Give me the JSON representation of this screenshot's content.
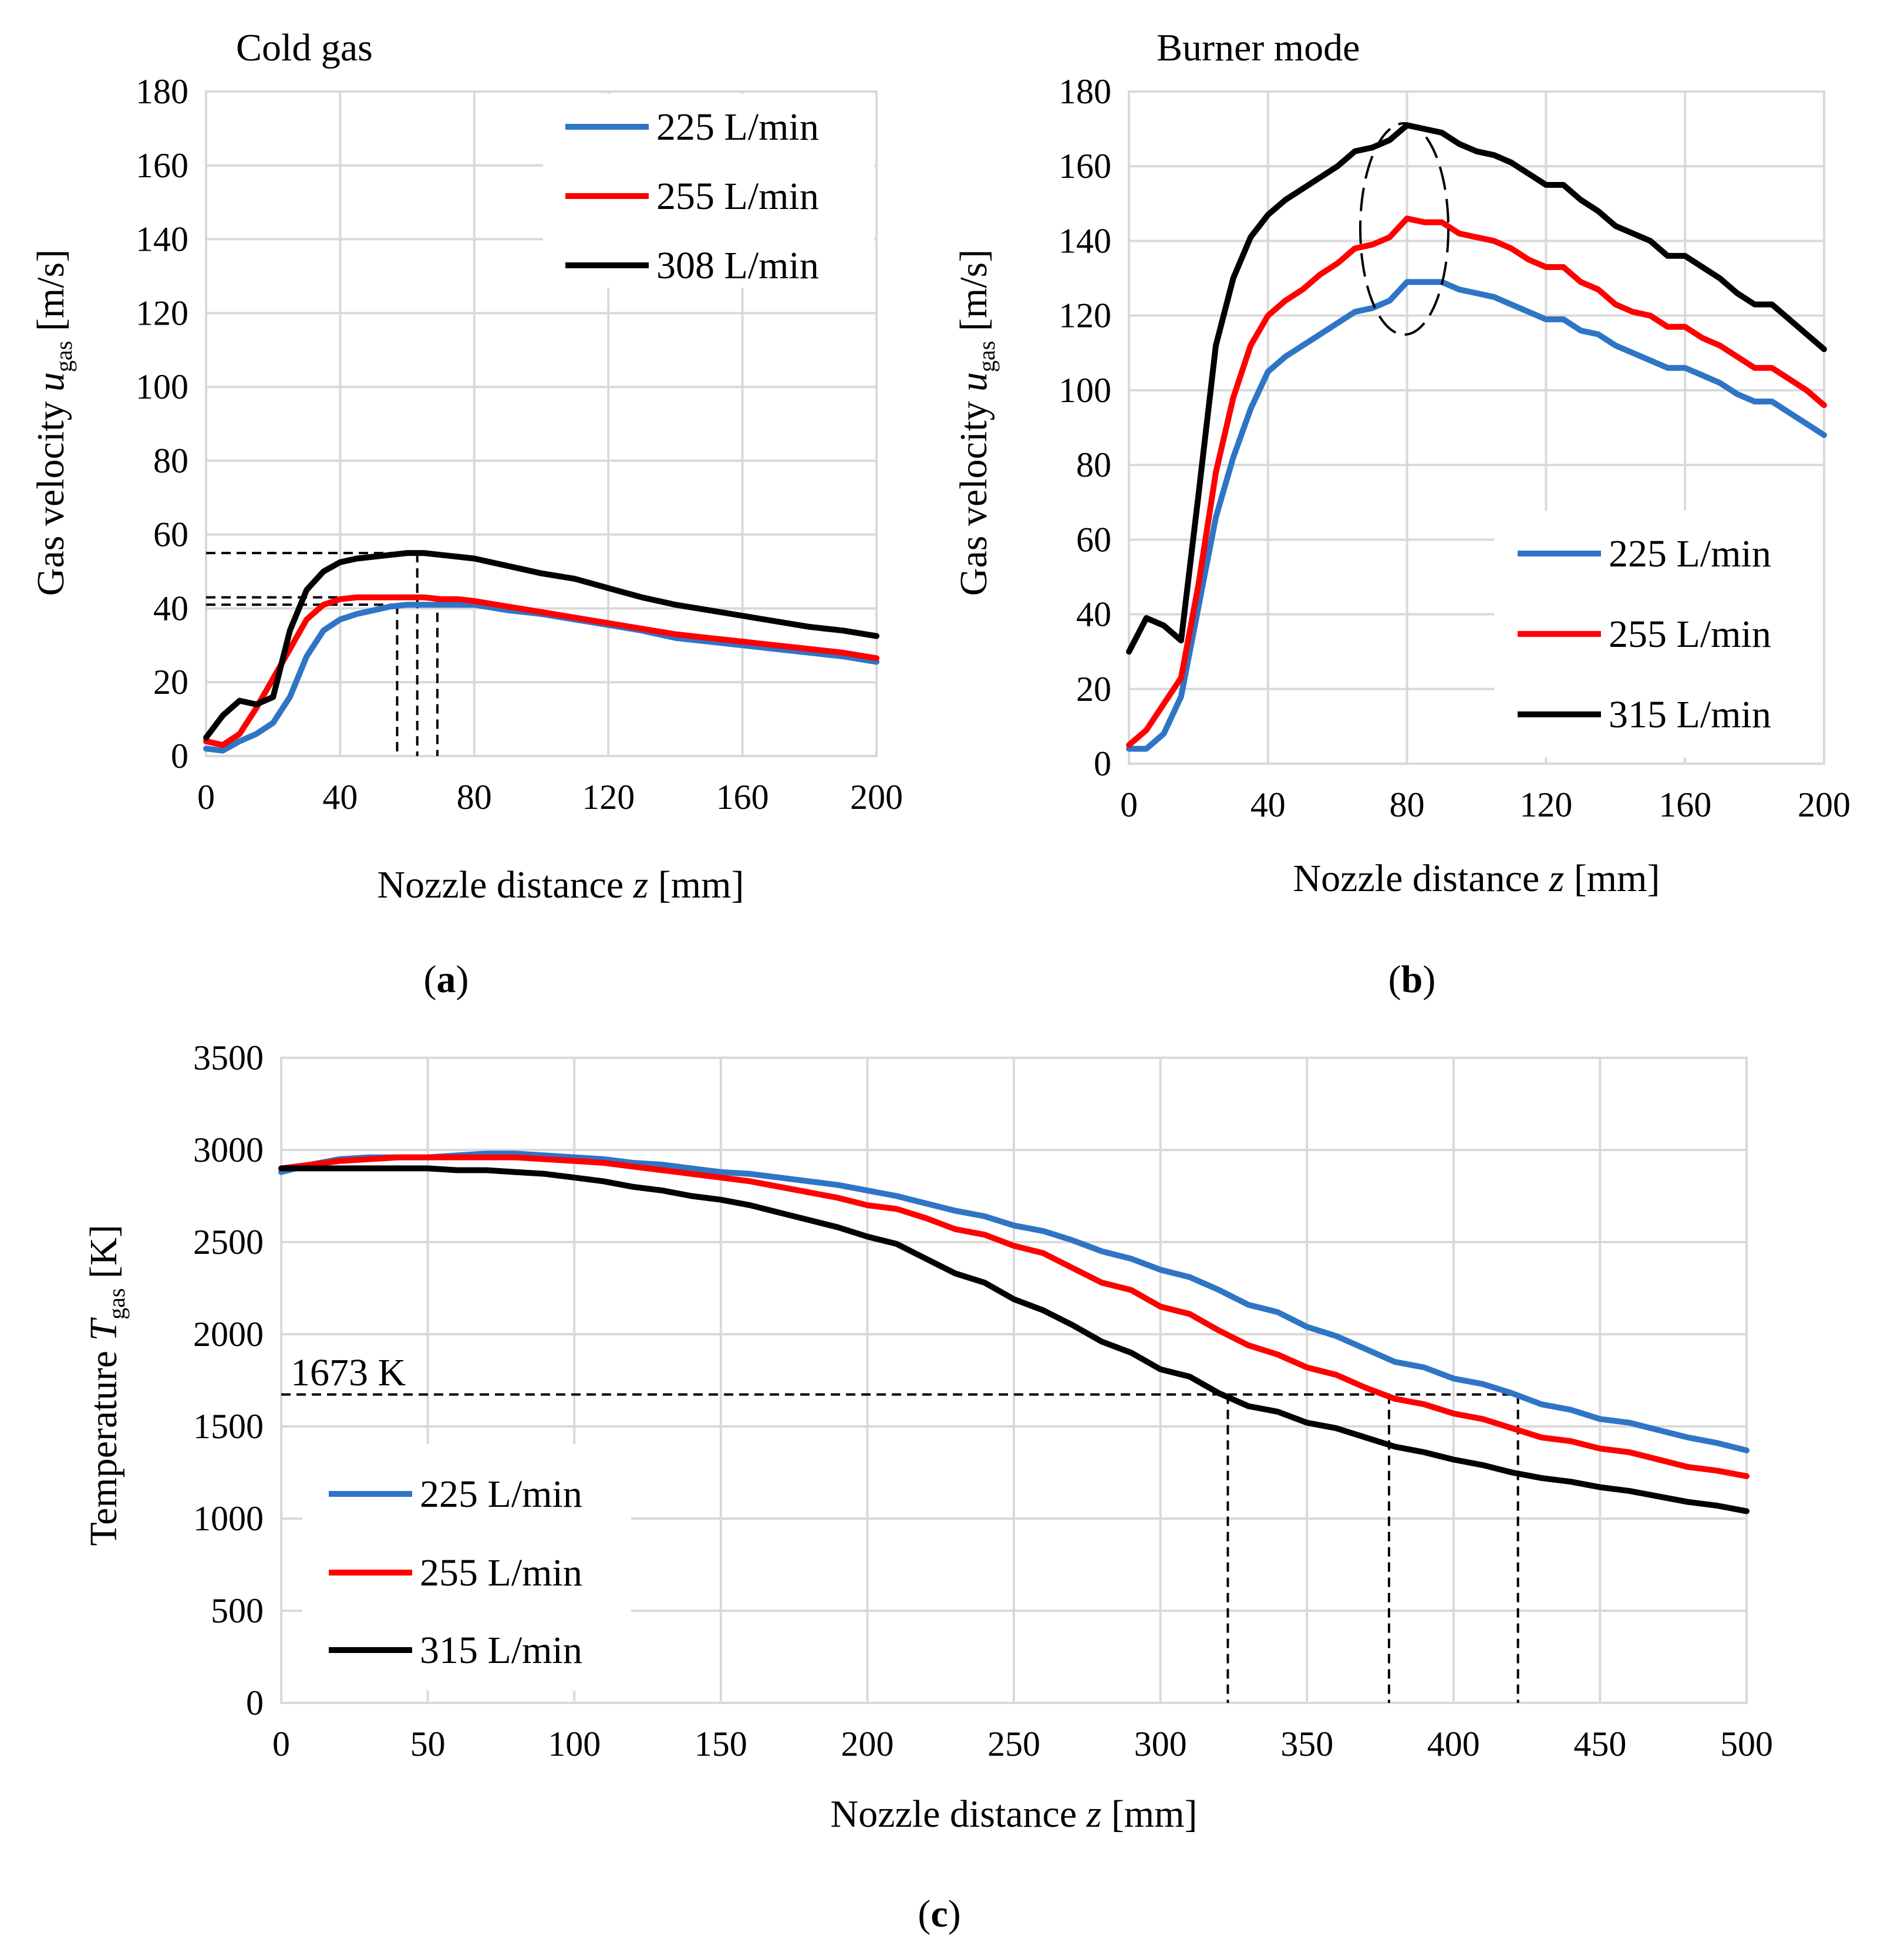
{
  "colors": {
    "blue": "#2f75c6",
    "red": "#ff0000",
    "black": "#000000",
    "grid": "#d9d9d9"
  },
  "chart_data": [
    {
      "type": "line",
      "panel": "a",
      "title": "Cold gas",
      "caption": "a",
      "ylabel": {
        "prefix": "Gas velocity ",
        "var": "u",
        "sub": "gas",
        "suffix": " [m/s]"
      },
      "xlabel": {
        "prefix": "Nozzle distance ",
        "var": "z",
        "suffix": " [mm]"
      },
      "xlim": [
        0,
        200
      ],
      "ylim": [
        0,
        180
      ],
      "xticks": [
        0,
        40,
        80,
        120,
        160,
        200
      ],
      "yticks": [
        0,
        20,
        40,
        60,
        80,
        100,
        120,
        140,
        160,
        180
      ],
      "legend_position": "top-right",
      "series": [
        {
          "name": "225 L/min",
          "color": "#2f75c6",
          "x": [
            0,
            5,
            10,
            15,
            20,
            25,
            30,
            35,
            40,
            45,
            50,
            55,
            60,
            65,
            70,
            75,
            80,
            90,
            100,
            110,
            120,
            130,
            140,
            150,
            160,
            170,
            180,
            190,
            200
          ],
          "y": [
            2,
            1.5,
            4,
            6,
            9,
            16,
            27,
            34,
            37,
            38.5,
            39.5,
            40.5,
            41,
            41,
            41,
            41,
            41,
            39.5,
            38.5,
            37,
            35.5,
            34,
            32,
            31,
            30,
            29,
            28,
            27,
            25.5
          ]
        },
        {
          "name": "255 L/min",
          "color": "#ff0000",
          "x": [
            0,
            5,
            10,
            15,
            20,
            25,
            30,
            35,
            40,
            45,
            50,
            55,
            60,
            65,
            70,
            75,
            80,
            90,
            100,
            110,
            120,
            130,
            140,
            150,
            160,
            170,
            180,
            190,
            200
          ],
          "y": [
            4,
            3,
            6,
            13,
            21,
            29,
            37,
            41,
            42.5,
            43,
            43,
            43,
            43,
            43,
            42.5,
            42.5,
            42,
            40.5,
            39,
            37.5,
            36,
            34.5,
            33,
            32,
            31,
            30,
            29,
            28,
            26.5
          ]
        },
        {
          "name": "308 L/min",
          "color": "#000000",
          "x": [
            0,
            5,
            10,
            15,
            20,
            25,
            30,
            35,
            40,
            45,
            50,
            55,
            60,
            65,
            70,
            75,
            80,
            90,
            100,
            110,
            120,
            130,
            140,
            150,
            160,
            170,
            180,
            190,
            200
          ],
          "y": [
            5,
            11,
            15,
            14,
            16,
            34,
            45,
            50,
            52.5,
            53.5,
            54,
            54.5,
            55,
            55,
            54.5,
            54,
            53.5,
            51.5,
            49.5,
            48,
            45.5,
            43,
            41,
            39.5,
            38,
            36.5,
            35,
            34,
            32.5
          ]
        }
      ],
      "reference_lines": [
        {
          "value": 41,
          "at_x": 57
        },
        {
          "value": 43,
          "at_x": 69
        },
        {
          "value": 55,
          "at_x": 63
        }
      ]
    },
    {
      "type": "line",
      "panel": "b",
      "title": "Burner mode",
      "caption": "b",
      "ylabel": {
        "prefix": "Gas velocity ",
        "var": "u",
        "sub": "gas",
        "suffix": " [m/s]"
      },
      "xlabel": {
        "prefix": "Nozzle distance ",
        "var": "z",
        "suffix": " [mm]"
      },
      "xlim": [
        0,
        200
      ],
      "ylim": [
        0,
        180
      ],
      "xticks": [
        0,
        40,
        80,
        120,
        160,
        200
      ],
      "yticks": [
        0,
        20,
        40,
        60,
        80,
        100,
        120,
        140,
        160,
        180
      ],
      "legend_position": "bottom-right",
      "series": [
        {
          "name": "225 L/min",
          "color": "#2f75c6",
          "x": [
            0,
            5,
            10,
            15,
            20,
            25,
            30,
            35,
            40,
            45,
            50,
            55,
            60,
            65,
            70,
            75,
            80,
            85,
            90,
            95,
            100,
            105,
            110,
            115,
            120,
            125,
            130,
            135,
            140,
            145,
            150,
            155,
            160,
            165,
            170,
            175,
            180,
            185,
            190,
            195,
            200
          ],
          "y": [
            4,
            4,
            8,
            18,
            42,
            66,
            82,
            95,
            105,
            109,
            112,
            115,
            118,
            121,
            122,
            124,
            129,
            129,
            129,
            127,
            126,
            125,
            123,
            121,
            119,
            119,
            116,
            115,
            112,
            110,
            108,
            106,
            106,
            104,
            102,
            99,
            97,
            97,
            94,
            91,
            88
          ]
        },
        {
          "name": "255 L/min",
          "color": "#ff0000",
          "x": [
            0,
            5,
            10,
            15,
            20,
            25,
            30,
            35,
            40,
            45,
            50,
            55,
            60,
            65,
            70,
            75,
            80,
            85,
            90,
            95,
            100,
            105,
            110,
            115,
            120,
            125,
            130,
            135,
            140,
            145,
            150,
            155,
            160,
            165,
            170,
            175,
            180,
            185,
            190,
            195,
            200
          ],
          "y": [
            5,
            9,
            16,
            23,
            48,
            78,
            98,
            112,
            120,
            124,
            127,
            131,
            134,
            138,
            139,
            141,
            146,
            145,
            145,
            142,
            141,
            140,
            138,
            135,
            133,
            133,
            129,
            127,
            123,
            121,
            120,
            117,
            117,
            114,
            112,
            109,
            106,
            106,
            103,
            100,
            96
          ]
        },
        {
          "name": "315 L/min",
          "color": "#000000",
          "x": [
            0,
            5,
            10,
            15,
            20,
            25,
            30,
            35,
            40,
            45,
            50,
            55,
            60,
            65,
            70,
            75,
            80,
            85,
            90,
            95,
            100,
            105,
            110,
            115,
            120,
            125,
            130,
            135,
            140,
            145,
            150,
            155,
            160,
            165,
            170,
            175,
            180,
            185,
            190,
            195,
            200
          ],
          "y": [
            30,
            39,
            37,
            33,
            72,
            112,
            130,
            141,
            147,
            151,
            154,
            157,
            160,
            164,
            165,
            167,
            171,
            170,
            169,
            166,
            164,
            163,
            161,
            158,
            155,
            155,
            151,
            148,
            144,
            142,
            140,
            136,
            136,
            133,
            130,
            126,
            123,
            123,
            119,
            115,
            111
          ]
        }
      ],
      "annotation": "peak ellipse around z = 80 mm"
    },
    {
      "type": "line",
      "panel": "c",
      "caption": "c",
      "ylabel": {
        "prefix": "Temperature ",
        "var": "T",
        "sub": "gas",
        "suffix": "  [K]"
      },
      "xlabel": {
        "prefix": "Nozzle distance ",
        "var": "z",
        "suffix": " [mm]"
      },
      "xlim": [
        0,
        500
      ],
      "ylim": [
        0,
        3500
      ],
      "xticks": [
        0,
        50,
        100,
        150,
        200,
        250,
        300,
        350,
        400,
        450,
        500
      ],
      "yticks": [
        0,
        500,
        1000,
        1500,
        2000,
        2500,
        3000,
        3500
      ],
      "legend_position": "bottom-left",
      "series": [
        {
          "name": "225 L/min",
          "color": "#2f75c6",
          "x": [
            0,
            10,
            20,
            30,
            40,
            50,
            60,
            70,
            80,
            90,
            100,
            110,
            120,
            130,
            140,
            150,
            160,
            170,
            180,
            190,
            200,
            210,
            220,
            230,
            240,
            250,
            260,
            270,
            280,
            290,
            300,
            310,
            320,
            330,
            340,
            350,
            360,
            370,
            380,
            390,
            400,
            410,
            420,
            430,
            440,
            450,
            460,
            470,
            480,
            490,
            500
          ],
          "y": [
            2880,
            2920,
            2950,
            2960,
            2960,
            2960,
            2970,
            2980,
            2980,
            2970,
            2960,
            2950,
            2930,
            2920,
            2900,
            2880,
            2870,
            2850,
            2830,
            2810,
            2780,
            2750,
            2710,
            2670,
            2640,
            2590,
            2560,
            2510,
            2450,
            2410,
            2350,
            2310,
            2240,
            2160,
            2120,
            2040,
            1990,
            1920,
            1850,
            1820,
            1760,
            1730,
            1680,
            1620,
            1590,
            1540,
            1520,
            1480,
            1440,
            1410,
            1370
          ]
        },
        {
          "name": "255 L/min",
          "color": "#ff0000",
          "x": [
            0,
            10,
            20,
            30,
            40,
            50,
            60,
            70,
            80,
            90,
            100,
            110,
            120,
            130,
            140,
            150,
            160,
            170,
            180,
            190,
            200,
            210,
            220,
            230,
            240,
            250,
            260,
            270,
            280,
            290,
            300,
            310,
            320,
            330,
            340,
            350,
            360,
            370,
            380,
            390,
            400,
            410,
            420,
            430,
            440,
            450,
            460,
            470,
            480,
            490,
            500
          ],
          "y": [
            2900,
            2920,
            2940,
            2950,
            2960,
            2960,
            2960,
            2960,
            2960,
            2950,
            2940,
            2930,
            2910,
            2890,
            2870,
            2850,
            2830,
            2800,
            2770,
            2740,
            2700,
            2680,
            2630,
            2570,
            2540,
            2480,
            2440,
            2360,
            2280,
            2240,
            2150,
            2110,
            2020,
            1940,
            1890,
            1820,
            1780,
            1710,
            1650,
            1620,
            1570,
            1540,
            1490,
            1440,
            1420,
            1380,
            1360,
            1320,
            1280,
            1260,
            1230
          ]
        },
        {
          "name": "315 L/min",
          "color": "#000000",
          "x": [
            0,
            10,
            20,
            30,
            40,
            50,
            60,
            70,
            80,
            90,
            100,
            110,
            120,
            130,
            140,
            150,
            160,
            170,
            180,
            190,
            200,
            210,
            220,
            230,
            240,
            250,
            260,
            270,
            280,
            290,
            300,
            310,
            320,
            330,
            340,
            350,
            360,
            370,
            380,
            390,
            400,
            410,
            420,
            430,
            440,
            450,
            460,
            470,
            480,
            490,
            500
          ],
          "y": [
            2900,
            2900,
            2900,
            2900,
            2900,
            2900,
            2890,
            2890,
            2880,
            2870,
            2850,
            2830,
            2800,
            2780,
            2750,
            2730,
            2700,
            2660,
            2620,
            2580,
            2530,
            2490,
            2410,
            2330,
            2280,
            2190,
            2130,
            2050,
            1960,
            1900,
            1810,
            1770,
            1680,
            1610,
            1580,
            1520,
            1490,
            1440,
            1390,
            1360,
            1320,
            1290,
            1250,
            1220,
            1200,
            1170,
            1150,
            1120,
            1090,
            1070,
            1040
          ]
        }
      ],
      "reference_label": "1673 K",
      "reference_value": 1673,
      "crossings_x": [
        323,
        378,
        422
      ]
    }
  ]
}
